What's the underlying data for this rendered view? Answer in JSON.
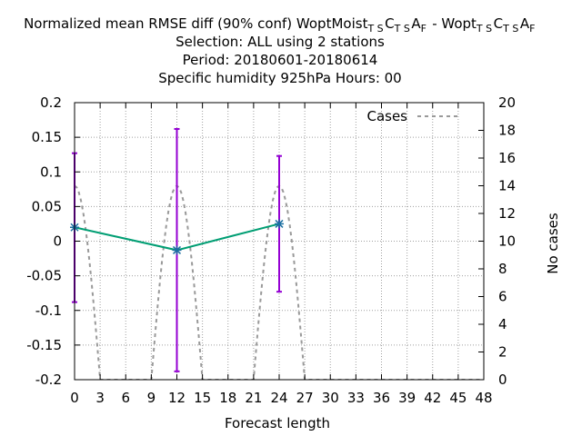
{
  "chart_data": {
    "type": "line",
    "title_lines": [
      {
        "segments": [
          {
            "t": "Normalized mean RMSE diff (90% conf) WoptMoist"
          },
          {
            "t": "T S",
            "sub": true
          },
          {
            "t": "C"
          },
          {
            "t": "T S",
            "sub": true
          },
          {
            "t": "A"
          },
          {
            "t": "F",
            "sub": true
          },
          {
            "t": " - Wopt"
          },
          {
            "t": "T S",
            "sub": true
          },
          {
            "t": "C"
          },
          {
            "t": "T S",
            "sub": true
          },
          {
            "t": "A"
          },
          {
            "t": "F",
            "sub": true
          }
        ]
      },
      {
        "segments": [
          {
            "t": "Selection: ALL using     2 stations"
          }
        ]
      },
      {
        "segments": [
          {
            "t": "Period: 20180601-20180614"
          }
        ]
      },
      {
        "segments": [
          {
            "t": "Specific humidity 925hPa   Hours:  00"
          }
        ]
      }
    ],
    "xlabel": "Forecast length",
    "ylabel_left": "",
    "ylabel_right": "No cases",
    "xlim": [
      0,
      48
    ],
    "ylim_left": [
      -0.2,
      0.2
    ],
    "ylim_right": [
      0,
      20
    ],
    "x_ticks": [
      "0",
      "3",
      "6",
      "9",
      "12",
      "15",
      "18",
      "21",
      "24",
      "27",
      "30",
      "33",
      "36",
      "39",
      "42",
      "45",
      "48"
    ],
    "y_ticks_left": [
      "0.2",
      "0.15",
      "0.1",
      "0.05",
      "0",
      "-0.05",
      "-0.1",
      "-0.15",
      "-0.2"
    ],
    "y_ticks_right": [
      "20",
      "18",
      "16",
      "14",
      "12",
      "10",
      "8",
      "6",
      "4",
      "2",
      "0"
    ],
    "grid": true,
    "legend": {
      "position": "top-right",
      "label": "Cases"
    },
    "series": [
      {
        "axis": "left",
        "color": "#009e73",
        "x": [
          0,
          12,
          24
        ],
        "y": [
          0.02,
          -0.013,
          0.025
        ],
        "err_low": [
          -0.088,
          -0.188,
          -0.073
        ],
        "err_high": [
          0.127,
          0.162,
          0.123
        ],
        "err_color": "#9400d3"
      },
      {
        "name": "Cases",
        "axis": "right",
        "color": "#999999",
        "style": "dashed",
        "x": [
          0,
          12,
          24
        ],
        "y": [
          14,
          14,
          14
        ]
      }
    ]
  }
}
